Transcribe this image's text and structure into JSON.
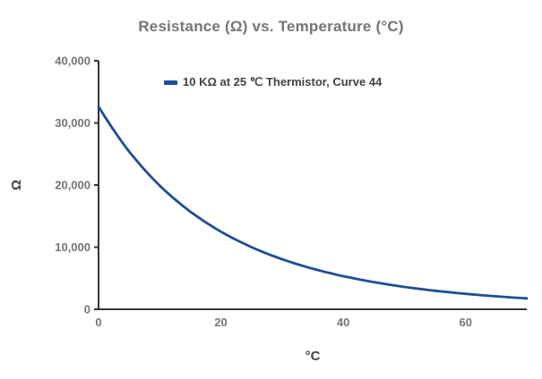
{
  "title": "Resistance (Ω) vs. Temperature (°C)",
  "legend": {
    "label": "10 KΩ at 25 ℃ Thermistor, Curve 44",
    "marker_color": "#1F4E96"
  },
  "axes": {
    "x_title": "°C",
    "y_title": "Ω"
  },
  "colors": {
    "line": "#1F4E96",
    "axis_line": "#333333",
    "tick_label": "#757575",
    "title_text": "#757575",
    "axis_title_text": "#424242",
    "background": "#FFFFFF"
  },
  "chart_data": {
    "type": "line",
    "title": "Resistance (Ω) vs. Temperature (°C)",
    "xlabel": "°C",
    "ylabel": "Ω",
    "xlim": [
      0,
      70
    ],
    "ylim": [
      0,
      40000
    ],
    "x_ticks": [
      0,
      20,
      40,
      60
    ],
    "x_tick_labels": [
      "0",
      "20",
      "40",
      "60"
    ],
    "y_ticks": [
      0,
      10000,
      20000,
      30000,
      40000
    ],
    "y_tick_labels": [
      "0",
      "10,000",
      "20,000",
      "30,000",
      "40,000"
    ],
    "grid": false,
    "legend_position": "top-inside",
    "series": [
      {
        "name": "10 KΩ at 25 ℃ Thermistor, Curve 44",
        "x": [
          0,
          5,
          10,
          15,
          20,
          25,
          30,
          35,
          40,
          45,
          50,
          55,
          60,
          65,
          70
        ],
        "y": [
          32650,
          25395,
          19903,
          15714,
          12493,
          10000,
          8056,
          6530,
          5325,
          4367,
          3601,
          2985,
          2487,
          2082,
          1751
        ]
      }
    ]
  }
}
